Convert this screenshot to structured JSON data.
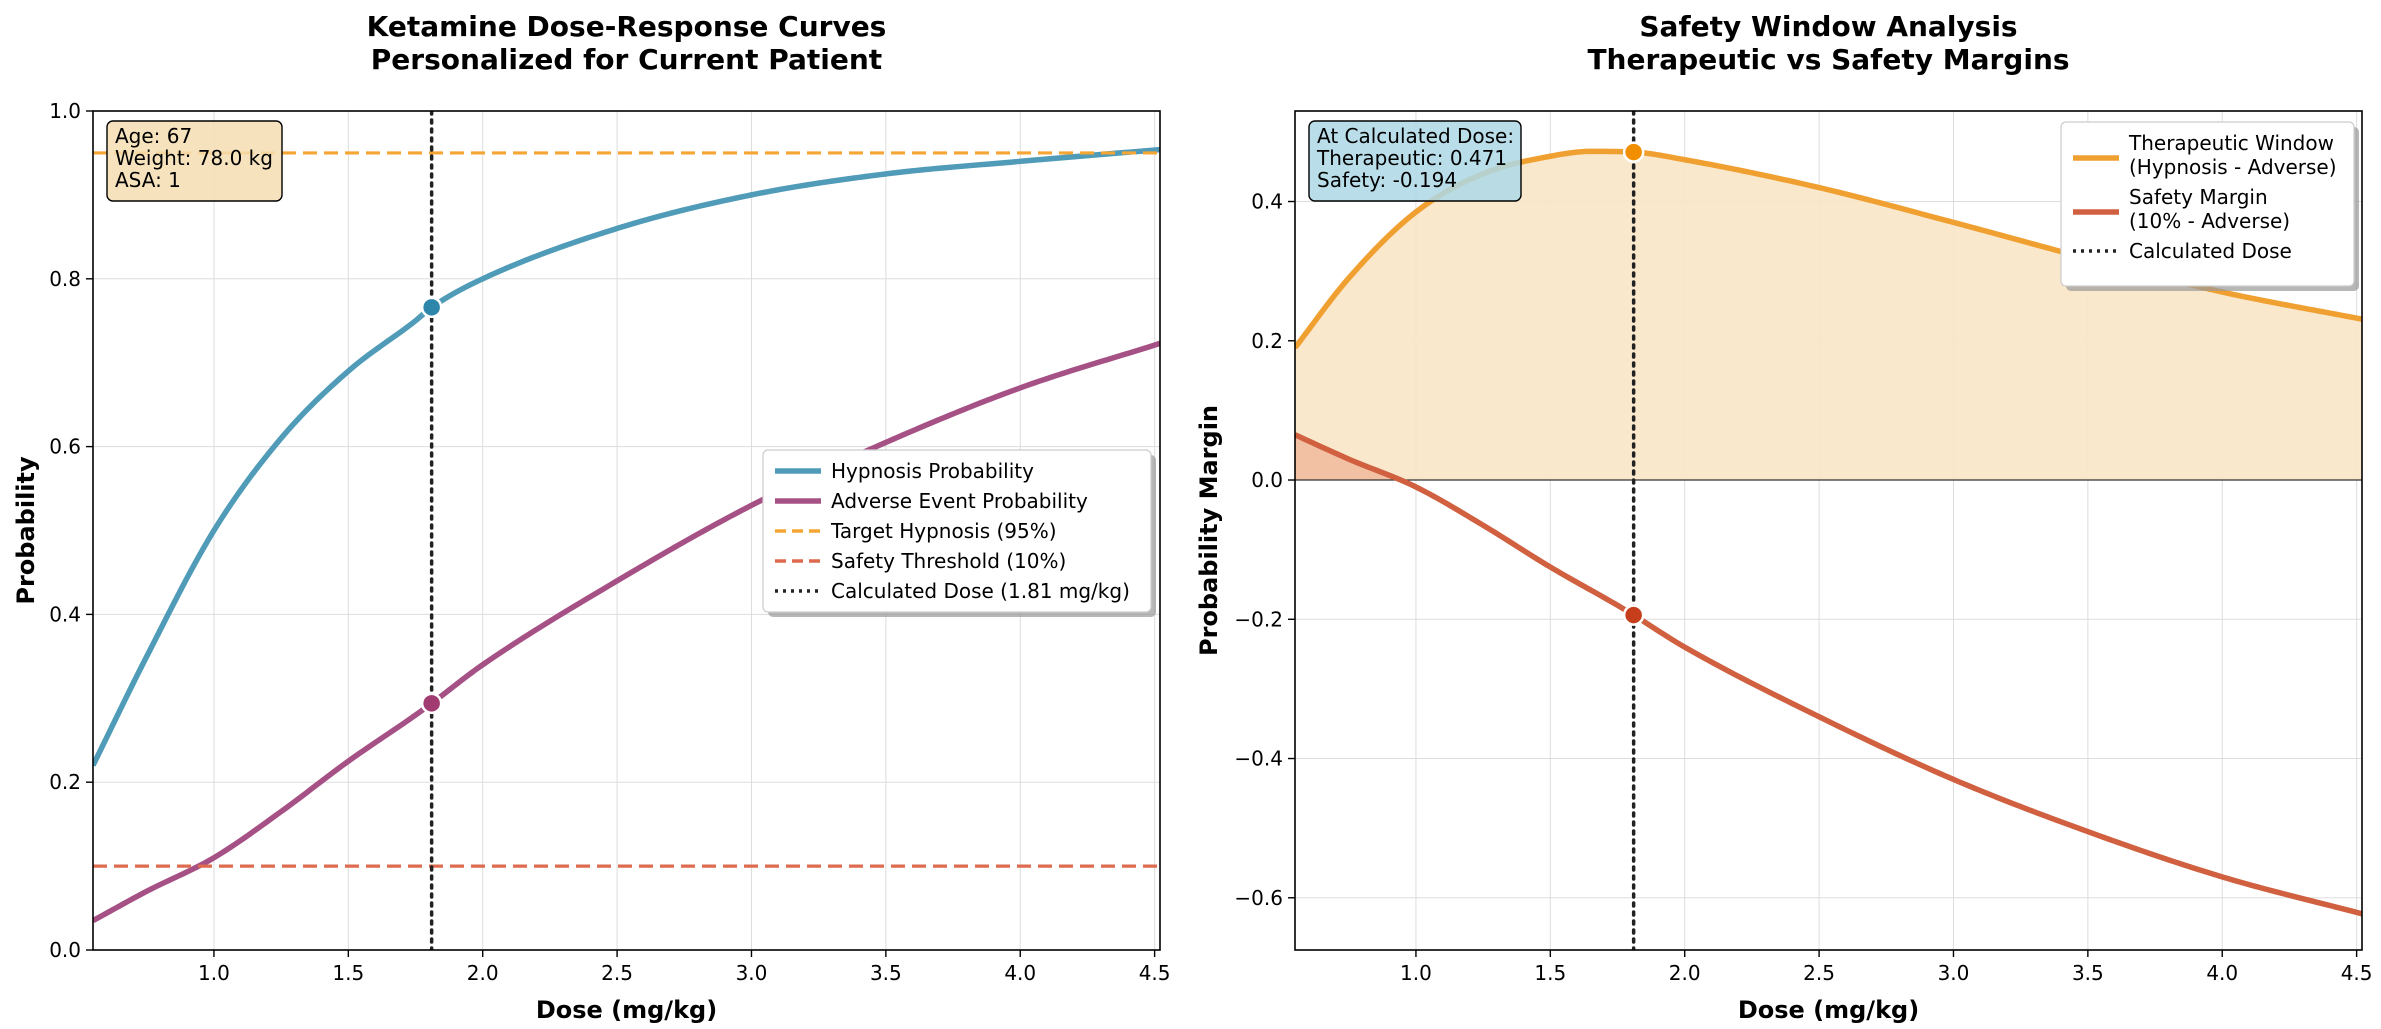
{
  "colors": {
    "hypnosis": "#4f9bb8",
    "hypnosis_marker": "#2e86ab",
    "adverse": "#a65185",
    "adverse_marker": "#a23b72",
    "target": "#f4a534",
    "safety": "#de6b4f",
    "calc": "#222222",
    "therapeutic": "#f0a030",
    "therapeutic_marker": "#f18f01",
    "therapeutic_fill": "#fae6c8",
    "margin": "#d0603f",
    "margin_marker": "#c73e1d",
    "margin_fill": "#f1bca0",
    "patient_box": "#f5deb3",
    "result_box": "#add8e6",
    "grid": "#dddddd"
  },
  "chart_data": [
    {
      "type": "line",
      "title": "Ketamine Dose-Response Curves\nPersonalized for Current Patient",
      "xlabel": "Dose (mg/kg)",
      "ylabel": "Probability",
      "xlim": [
        0.55,
        4.52
      ],
      "ylim": [
        0.0,
        1.0
      ],
      "xticks": [
        1.0,
        1.5,
        2.0,
        2.5,
        3.0,
        3.5,
        4.0,
        4.5
      ],
      "xtick_labels": [
        "1.0",
        "1.5",
        "2.0",
        "2.5",
        "3.0",
        "3.5",
        "4.0",
        "4.5"
      ],
      "yticks": [
        0.0,
        0.2,
        0.4,
        0.6,
        0.8,
        1.0
      ],
      "ytick_labels": [
        "0.0",
        "0.2",
        "0.4",
        "0.6",
        "0.8",
        "1.0"
      ],
      "grid": true,
      "legend_position": "center-right",
      "series": [
        {
          "name": "Hypnosis Probability",
          "color_key": "hypnosis",
          "style": "solid",
          "x": [
            0.55,
            0.75,
            1.0,
            1.25,
            1.5,
            1.75,
            1.81,
            2.0,
            2.5,
            3.0,
            3.5,
            4.0,
            4.52
          ],
          "y": [
            0.22,
            0.35,
            0.5,
            0.61,
            0.69,
            0.75,
            0.766,
            0.8,
            0.86,
            0.9,
            0.925,
            0.94,
            0.954
          ]
        },
        {
          "name": "Adverse Event Probability",
          "color_key": "adverse",
          "style": "solid",
          "x": [
            0.55,
            0.75,
            1.0,
            1.25,
            1.5,
            1.75,
            1.81,
            2.0,
            2.5,
            3.0,
            3.5,
            4.0,
            4.52
          ],
          "y": [
            0.035,
            0.07,
            0.11,
            0.165,
            0.225,
            0.28,
            0.294,
            0.34,
            0.44,
            0.53,
            0.605,
            0.67,
            0.723
          ]
        },
        {
          "name": "Target Hypnosis (95%)",
          "color_key": "target",
          "style": "dashed",
          "hline": 0.95
        },
        {
          "name": "Safety Threshold (10%)",
          "color_key": "safety",
          "style": "dashed",
          "hline": 0.1
        },
        {
          "name": "Calculated Dose (1.81 mg/kg)",
          "color_key": "calc",
          "style": "dotted",
          "vline": 1.81
        }
      ],
      "markers": [
        {
          "x": 1.81,
          "y": 0.766,
          "color_key": "hypnosis_marker"
        },
        {
          "x": 1.81,
          "y": 0.294,
          "color_key": "adverse_marker"
        }
      ],
      "annotation": {
        "lines": [
          "Age: 67",
          "Weight: 78.0 kg",
          "ASA: 1"
        ],
        "position": "top-left",
        "box_color_key": "patient_box"
      }
    },
    {
      "type": "line",
      "title": "Safety Window Analysis\nTherapeutic vs Safety Margins",
      "xlabel": "Dose (mg/kg)",
      "ylabel": "Probability Margin",
      "xlim": [
        0.55,
        4.52
      ],
      "ylim": [
        -0.675,
        0.53
      ],
      "xticks": [
        1.0,
        1.5,
        2.0,
        2.5,
        3.0,
        3.5,
        4.0,
        4.5
      ],
      "xtick_labels": [
        "1.0",
        "1.5",
        "2.0",
        "2.5",
        "3.0",
        "3.5",
        "4.0",
        "4.5"
      ],
      "yticks": [
        -0.6,
        -0.4,
        -0.2,
        0.0,
        0.2,
        0.4
      ],
      "ytick_labels": [
        "−0.6",
        "−0.4",
        "−0.2",
        "0.0",
        "0.2",
        "0.4"
      ],
      "grid": true,
      "zero_line": true,
      "legend_position": "top-right",
      "series": [
        {
          "name": "Therapeutic Window\n(Hypnosis - Adverse)",
          "color_key": "therapeutic",
          "style": "solid",
          "fill_to_zero": "therapeutic_fill",
          "x": [
            0.55,
            0.75,
            1.0,
            1.25,
            1.5,
            1.65,
            1.81,
            2.0,
            2.5,
            3.0,
            3.5,
            4.0,
            4.52
          ],
          "y": [
            0.19,
            0.29,
            0.385,
            0.44,
            0.465,
            0.472,
            0.471,
            0.46,
            0.42,
            0.37,
            0.318,
            0.27,
            0.231
          ]
        },
        {
          "name": "Safety Margin\n(10% - Adverse)",
          "color_key": "margin",
          "style": "solid",
          "fill_to_zero_positive": "margin_fill",
          "x": [
            0.55,
            0.75,
            1.0,
            1.25,
            1.5,
            1.75,
            1.81,
            2.0,
            2.5,
            3.0,
            3.5,
            4.0,
            4.52
          ],
          "y": [
            0.065,
            0.03,
            -0.01,
            -0.065,
            -0.125,
            -0.18,
            -0.194,
            -0.24,
            -0.34,
            -0.43,
            -0.505,
            -0.57,
            -0.623
          ]
        },
        {
          "name": "Calculated Dose",
          "color_key": "calc",
          "style": "dotted",
          "vline": 1.81
        }
      ],
      "markers": [
        {
          "x": 1.81,
          "y": 0.471,
          "color_key": "therapeutic_marker"
        },
        {
          "x": 1.81,
          "y": -0.194,
          "color_key": "margin_marker"
        }
      ],
      "annotation": {
        "lines": [
          "At Calculated Dose:",
          "Therapeutic: 0.471",
          "Safety: -0.194"
        ],
        "position": "top-left",
        "box_color_key": "result_box"
      }
    }
  ]
}
